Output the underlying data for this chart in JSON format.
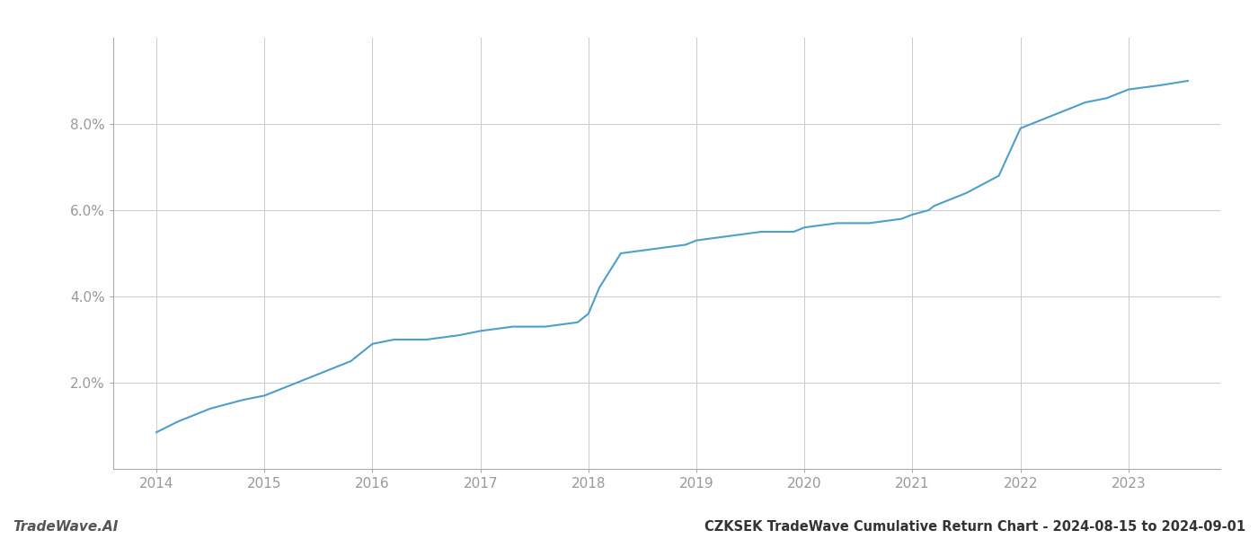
{
  "title": "CZKSEK TradeWave Cumulative Return Chart - 2024-08-15 to 2024-09-01",
  "watermark": "TradeWave.AI",
  "line_color": "#4d9fcc",
  "background_color": "#ffffff",
  "grid_color": "#cccccc",
  "x_values": [
    2014.0,
    2014.2,
    2014.5,
    2014.8,
    2015.0,
    2015.2,
    2015.5,
    2015.8,
    2016.0,
    2016.2,
    2016.5,
    2016.8,
    2017.0,
    2017.3,
    2017.6,
    2017.9,
    2018.0,
    2018.1,
    2018.3,
    2018.6,
    2018.9,
    2019.0,
    2019.3,
    2019.6,
    2019.9,
    2020.0,
    2020.3,
    2020.6,
    2020.9,
    2021.0,
    2021.15,
    2021.2,
    2021.5,
    2021.8,
    2022.0,
    2022.3,
    2022.6,
    2022.8,
    2023.0,
    2023.3,
    2023.55
  ],
  "y_values": [
    0.0085,
    0.011,
    0.014,
    0.016,
    0.017,
    0.019,
    0.022,
    0.025,
    0.029,
    0.03,
    0.03,
    0.031,
    0.032,
    0.033,
    0.033,
    0.034,
    0.036,
    0.042,
    0.05,
    0.051,
    0.052,
    0.053,
    0.054,
    0.055,
    0.055,
    0.056,
    0.057,
    0.057,
    0.058,
    0.059,
    0.06,
    0.061,
    0.064,
    0.068,
    0.079,
    0.082,
    0.085,
    0.086,
    0.088,
    0.089,
    0.09
  ],
  "xlim": [
    2013.6,
    2023.85
  ],
  "ylim": [
    0.0,
    0.1
  ],
  "yticks": [
    0.02,
    0.04,
    0.06,
    0.08
  ],
  "ytick_labels": [
    "2.0%",
    "4.0%",
    "6.0%",
    "8.0%"
  ],
  "xticks": [
    2014,
    2015,
    2016,
    2017,
    2018,
    2019,
    2020,
    2021,
    2022,
    2023
  ],
  "line_width": 1.5,
  "title_fontsize": 10.5,
  "tick_fontsize": 11,
  "watermark_fontsize": 11
}
